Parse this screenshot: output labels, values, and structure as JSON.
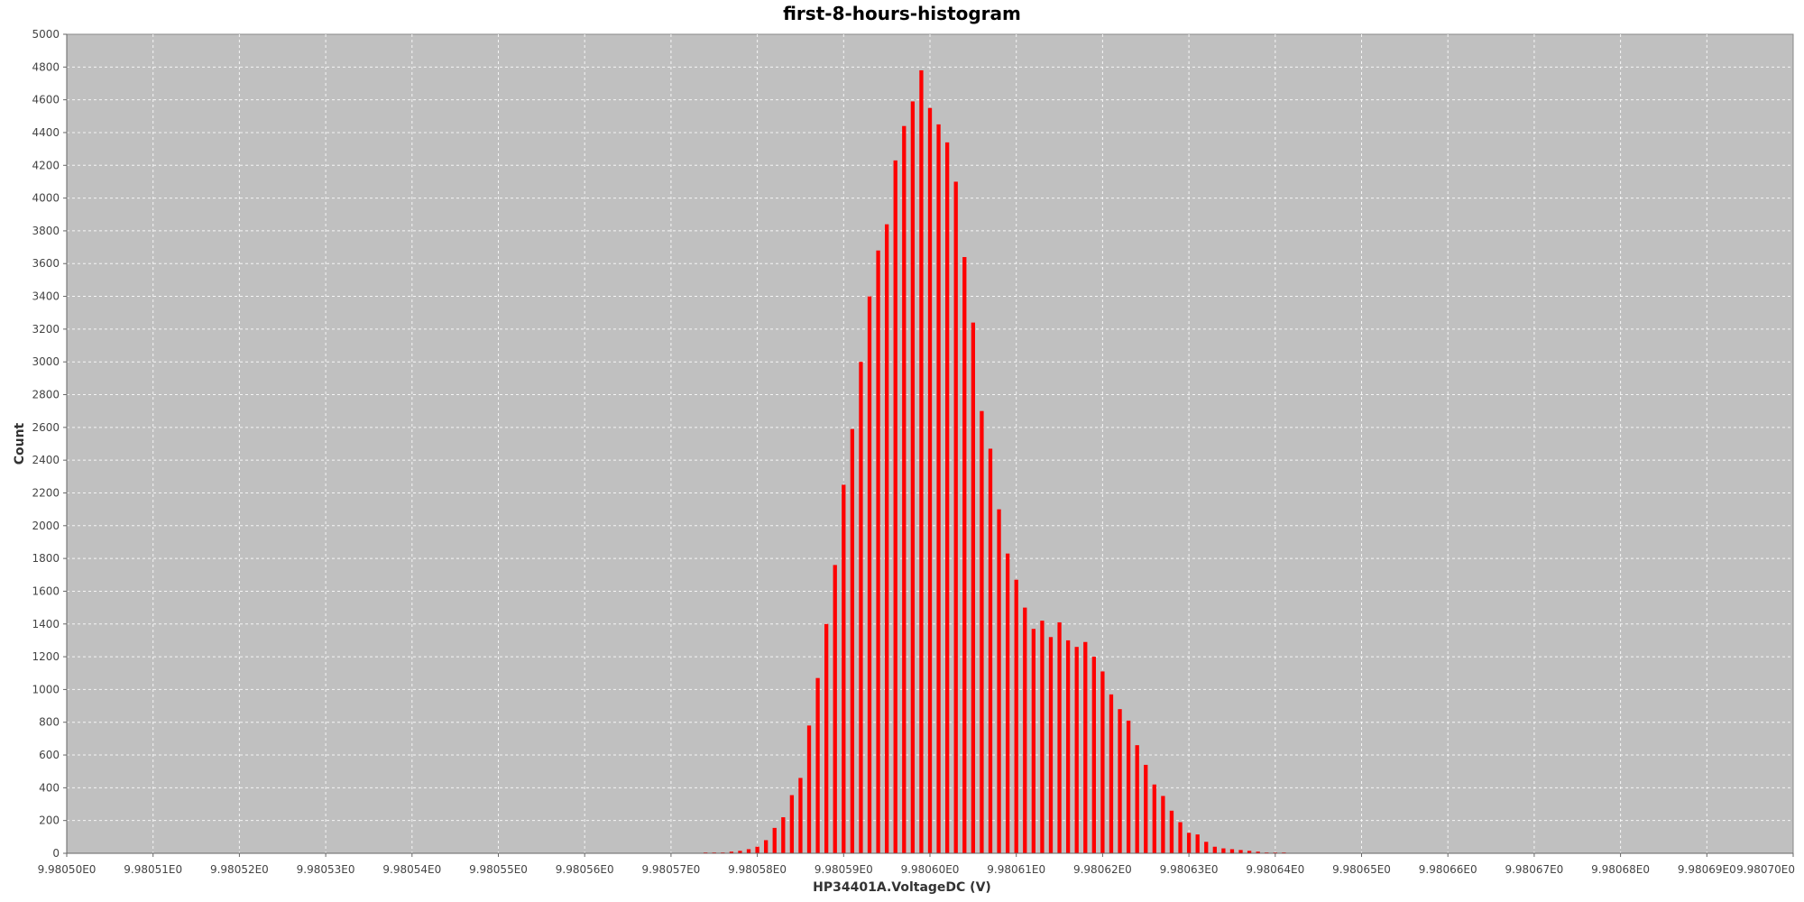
{
  "chart_data": {
    "type": "bar",
    "title": "first-8-hours-histogram",
    "xlabel": "HP34401A.VoltageDC (V)",
    "ylabel": "Count",
    "xlim": [
      9.9805,
      9.9807
    ],
    "ylim": [
      0,
      5000
    ],
    "grid": true,
    "background_color": "#c0c0c0",
    "bar_color": "#ff0000",
    "x_tick_labels": [
      "9.98050E0",
      "9.98051E0",
      "9.98052E0",
      "9.98053E0",
      "9.98054E0",
      "9.98055E0",
      "9.98056E0",
      "9.98057E0",
      "9.98058E0",
      "9.98059E0",
      "9.98060E0",
      "9.98061E0",
      "9.98062E0",
      "9.98063E0",
      "9.98064E0",
      "9.98065E0",
      "9.98066E0",
      "9.98067E0",
      "9.98068E0",
      "9.98069E0",
      "9.98070E0"
    ],
    "y_tick_labels": [
      "0",
      "200",
      "400",
      "600",
      "800",
      "1000",
      "1200",
      "1400",
      "1600",
      "1800",
      "2000",
      "2200",
      "2400",
      "2600",
      "2800",
      "3000",
      "3200",
      "3400",
      "3600",
      "3800",
      "4000",
      "4200",
      "4400",
      "4600",
      "4800",
      "5000"
    ],
    "x": [
      9.980574,
      9.980575,
      9.980576,
      9.980577,
      9.980578,
      9.980579,
      9.98058,
      9.980581,
      9.980582,
      9.980583,
      9.980584,
      9.980585,
      9.980586,
      9.980587,
      9.980588,
      9.980589,
      9.98059,
      9.980591,
      9.980592,
      9.980593,
      9.980594,
      9.980595,
      9.980596,
      9.980597,
      9.980598,
      9.980599,
      9.9806,
      9.980601,
      9.980602,
      9.980603,
      9.980604,
      9.980605,
      9.980606,
      9.980607,
      9.980608,
      9.980609,
      9.98061,
      9.980611,
      9.980612,
      9.980613,
      9.980614,
      9.980615,
      9.980616,
      9.980617,
      9.980618,
      9.980619,
      9.98062,
      9.980621,
      9.980622,
      9.980623,
      9.980624,
      9.980625,
      9.980626,
      9.980627,
      9.980628,
      9.980629,
      9.98063,
      9.980631,
      9.980632,
      9.980633,
      9.980634,
      9.980635,
      9.980636,
      9.980637,
      9.980638,
      9.980639,
      9.98064,
      9.980641,
      9.980642,
      9.980643,
      9.980644,
      9.980645,
      9.980646
    ],
    "values": [
      5,
      5,
      5,
      10,
      15,
      25,
      40,
      80,
      155,
      220,
      355,
      460,
      780,
      1070,
      1400,
      1760,
      2250,
      2590,
      3000,
      3400,
      3680,
      3840,
      4230,
      4440,
      4590,
      4780,
      4550,
      4450,
      4340,
      4100,
      3640,
      3240,
      2700,
      2470,
      2100,
      1830,
      1670,
      1500,
      1370,
      1420,
      1320,
      1410,
      1300,
      1260,
      1290,
      1200,
      1110,
      970,
      880,
      810,
      660,
      540,
      420,
      350,
      260,
      190,
      125,
      115,
      70,
      40,
      30,
      25,
      20,
      15,
      10,
      5,
      5,
      5,
      2,
      2,
      1,
      1,
      1
    ]
  }
}
